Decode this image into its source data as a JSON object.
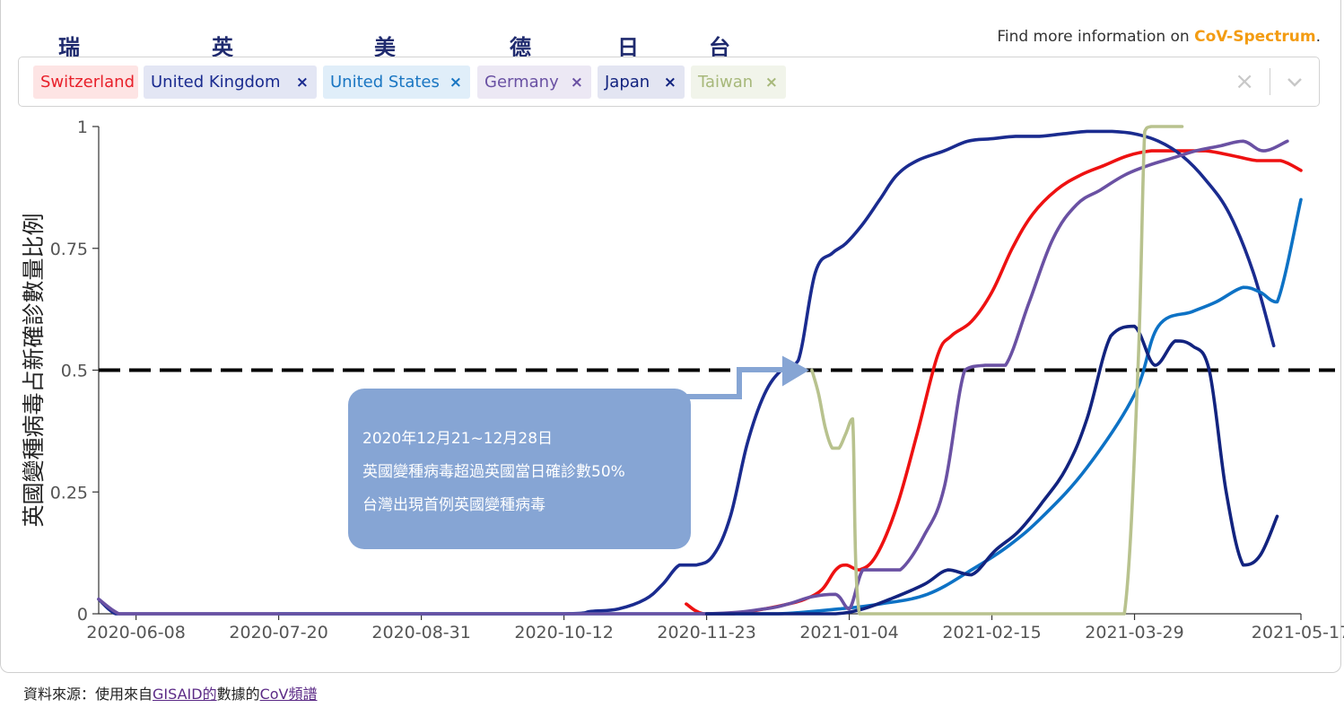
{
  "country_labels": [
    "瑞士",
    "英國",
    "美國",
    "德國",
    "日本",
    "台灣"
  ],
  "more_info": {
    "prefix": "Find more information on ",
    "link": "CoV-Spectrum",
    "suffix": "."
  },
  "selector": {
    "chips": [
      {
        "label": "Switzerland",
        "removable": false,
        "color": "#e8202a",
        "bg": "#fde4e4"
      },
      {
        "label": "United Kingdom",
        "removable": true,
        "color": "#1a2b8f",
        "bg": "#e3e6f4"
      },
      {
        "label": "United States",
        "removable": true,
        "color": "#1a76c2",
        "bg": "#e0eef9"
      },
      {
        "label": "Germany",
        "removable": true,
        "color": "#6a51a3",
        "bg": "#ece8f4"
      },
      {
        "label": "Japan",
        "removable": true,
        "color": "#12237f",
        "bg": "#e3e5f2"
      },
      {
        "label": "Taiwan",
        "removable": true,
        "color": "#a7b87a",
        "bg": "#f1f4ea"
      }
    ],
    "remove_glyph": "×",
    "clear_glyph": "×"
  },
  "annotation": {
    "lines": [
      "2020年12月21~12月28日",
      "英國變種病毒超過英國當日確診數50%",
      "台灣出現首例英國變種病毒"
    ]
  },
  "source": {
    "prefix": "資料來源：使用來自",
    "link1": "GISAID的",
    "middle": "數據的",
    "link2": "CoV頻譜"
  },
  "chart_data": {
    "type": "line",
    "ylabel": "英國變種病毒占新確診數量比例",
    "xlabel": "",
    "ylim": [
      0,
      1
    ],
    "y_ticks": [
      0,
      0.25,
      0.5,
      0.75,
      1
    ],
    "y_tick_labels": [
      "0",
      "0.25",
      "0.5",
      "0.75",
      "1"
    ],
    "x_start": "2020-05-28",
    "x_end": "2021-05-17",
    "x_ticks": [
      "2020-06-08",
      "2020-07-20",
      "2020-08-31",
      "2020-10-12",
      "2020-11-23",
      "2021-01-04",
      "2021-02-15",
      "2021-03-29",
      "2021-05-17"
    ],
    "reference_line": {
      "y": 0.5,
      "style": "dashed",
      "color": "#000000"
    },
    "annotation_arrow_to": {
      "x": "2020-12-24",
      "y": 0.5
    },
    "series": [
      {
        "name": "Switzerland",
        "color": "#ee1111",
        "x": [
          "2020-11-17",
          "2020-11-22",
          "2020-12-01",
          "2020-12-10",
          "2020-12-17",
          "2020-12-22",
          "2020-12-27",
          "2020-12-31",
          "2021-01-03",
          "2021-01-07",
          "2021-01-12",
          "2021-01-18",
          "2021-01-24",
          "2021-01-30",
          "2021-02-03",
          "2021-02-09",
          "2021-02-15",
          "2021-02-21",
          "2021-02-27",
          "2021-03-06",
          "2021-03-13",
          "2021-03-20",
          "2021-03-27",
          "2021-04-03",
          "2021-04-11",
          "2021-04-19",
          "2021-04-27",
          "2021-05-04",
          "2021-05-11",
          "2021-05-17"
        ],
        "y": [
          0.02,
          0.0,
          0.0,
          0.01,
          0.02,
          0.03,
          0.05,
          0.09,
          0.1,
          0.09,
          0.12,
          0.22,
          0.37,
          0.53,
          0.57,
          0.6,
          0.66,
          0.75,
          0.82,
          0.87,
          0.9,
          0.92,
          0.94,
          0.95,
          0.95,
          0.95,
          0.94,
          0.93,
          0.93,
          0.91
        ]
      },
      {
        "name": "United Kingdom",
        "color": "#1a2b8f",
        "x": [
          "2020-05-28",
          "2020-06-02",
          "2020-06-08",
          "2020-07-20",
          "2020-08-31",
          "2020-10-12",
          "2020-10-20",
          "2020-10-28",
          "2020-11-05",
          "2020-11-10",
          "2020-11-15",
          "2020-11-20",
          "2020-11-25",
          "2020-11-30",
          "2020-12-05",
          "2020-12-10",
          "2020-12-15",
          "2020-12-20",
          "2020-12-25",
          "2020-12-30",
          "2021-01-03",
          "2021-01-08",
          "2021-01-13",
          "2021-01-18",
          "2021-01-24",
          "2021-02-01",
          "2021-02-08",
          "2021-02-15",
          "2021-02-22",
          "2021-03-01",
          "2021-03-08",
          "2021-03-15",
          "2021-03-22",
          "2021-03-29",
          "2021-04-05",
          "2021-04-12",
          "2021-04-19",
          "2021-04-26",
          "2021-05-03",
          "2021-05-09"
        ],
        "y": [
          0.03,
          0.0,
          0.0,
          0.0,
          0.0,
          0.0,
          0.005,
          0.01,
          0.03,
          0.06,
          0.1,
          0.1,
          0.12,
          0.2,
          0.35,
          0.45,
          0.5,
          0.52,
          0.7,
          0.74,
          0.76,
          0.8,
          0.85,
          0.9,
          0.93,
          0.95,
          0.97,
          0.975,
          0.98,
          0.98,
          0.985,
          0.99,
          0.99,
          0.985,
          0.97,
          0.94,
          0.89,
          0.82,
          0.7,
          0.55
        ]
      },
      {
        "name": "United States",
        "color": "#0d72c5",
        "x": [
          "2020-07-20",
          "2020-08-31",
          "2020-10-12",
          "2020-11-23",
          "2020-12-14",
          "2021-01-01",
          "2021-01-13",
          "2021-01-27",
          "2021-02-09",
          "2021-02-20",
          "2021-03-02",
          "2021-03-15",
          "2021-03-29",
          "2021-04-05",
          "2021-04-15",
          "2021-04-22",
          "2021-04-30",
          "2021-05-05",
          "2021-05-10",
          "2021-05-17"
        ],
        "y": [
          0.0,
          0.0,
          0.0,
          0.0,
          0.0,
          0.01,
          0.02,
          0.04,
          0.09,
          0.14,
          0.2,
          0.3,
          0.45,
          0.59,
          0.62,
          0.64,
          0.67,
          0.66,
          0.64,
          0.85
        ]
      },
      {
        "name": "Germany",
        "color": "#6a51a3",
        "x": [
          "2020-05-28",
          "2020-06-03",
          "2020-06-08",
          "2020-07-20",
          "2020-08-31",
          "2020-10-12",
          "2020-11-23",
          "2020-12-10",
          "2020-12-17",
          "2020-12-24",
          "2020-12-31",
          "2021-01-04",
          "2021-01-08",
          "2021-01-13",
          "2021-01-19",
          "2021-01-26",
          "2021-02-01",
          "2021-02-07",
          "2021-02-13",
          "2021-02-19",
          "2021-02-26",
          "2021-03-05",
          "2021-03-12",
          "2021-03-19",
          "2021-03-26",
          "2021-04-02",
          "2021-04-09",
          "2021-04-16",
          "2021-04-23",
          "2021-04-30",
          "2021-05-06",
          "2021-05-13"
        ],
        "y": [
          0.03,
          0.0,
          0.0,
          0.0,
          0.0,
          0.0,
          0.0,
          0.01,
          0.02,
          0.035,
          0.04,
          0.01,
          0.09,
          0.09,
          0.09,
          0.16,
          0.26,
          0.5,
          0.51,
          0.51,
          0.64,
          0.77,
          0.84,
          0.87,
          0.9,
          0.92,
          0.935,
          0.95,
          0.96,
          0.97,
          0.95,
          0.97
        ]
      },
      {
        "name": "Japan",
        "color": "#12237f",
        "x": [
          "2020-11-23",
          "2020-12-17",
          "2020-12-31",
          "2021-01-08",
          "2021-01-16",
          "2021-01-26",
          "2021-02-02",
          "2021-02-09",
          "2021-02-16",
          "2021-02-23",
          "2021-03-02",
          "2021-03-09",
          "2021-03-15",
          "2021-03-22",
          "2021-03-29",
          "2021-04-04",
          "2021-04-10",
          "2021-04-15",
          "2021-04-20",
          "2021-04-25",
          "2021-04-30",
          "2021-05-05",
          "2021-05-10"
        ],
        "y": [
          0.0,
          0.0,
          0.0,
          0.01,
          0.03,
          0.06,
          0.09,
          0.08,
          0.13,
          0.17,
          0.23,
          0.3,
          0.4,
          0.57,
          0.59,
          0.51,
          0.56,
          0.55,
          0.5,
          0.25,
          0.1,
          0.12,
          0.2
        ]
      },
      {
        "name": "Taiwan",
        "color": "#b8c28e",
        "x": [
          "2020-12-24",
          "2020-12-26",
          "2020-12-28",
          "2020-12-30",
          "2021-01-01",
          "2021-01-03",
          "2021-01-05",
          "2021-01-07",
          "2021-01-15",
          "2021-02-01",
          "2021-03-01",
          "2021-03-20",
          "2021-03-26",
          "2021-03-30",
          "2021-04-01",
          "2021-04-03",
          "2021-04-08",
          "2021-04-12"
        ],
        "y": [
          0.5,
          0.45,
          0.38,
          0.34,
          0.34,
          0.37,
          0.4,
          0.0,
          0.0,
          0.0,
          0.0,
          0.0,
          0.0,
          0.5,
          0.99,
          1.0,
          1.0,
          1.0
        ]
      }
    ]
  }
}
